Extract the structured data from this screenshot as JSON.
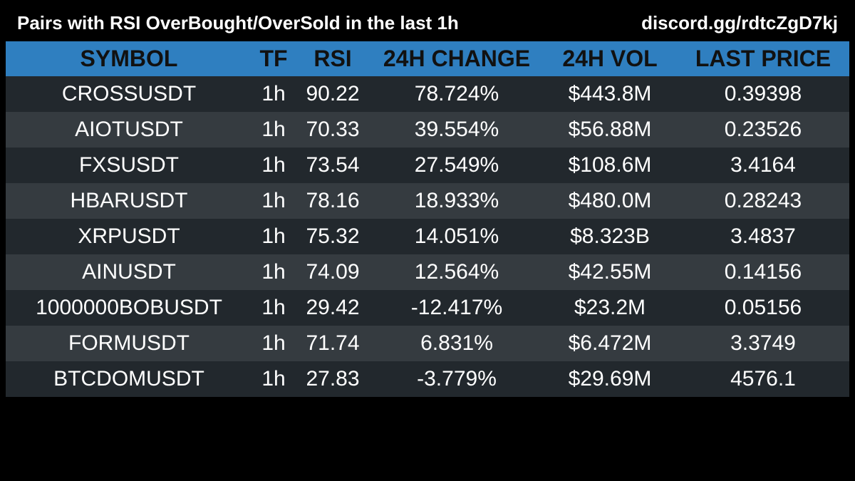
{
  "header": {
    "title": "Pairs with RSI OverBought/OverSold in the last 1h",
    "link": "discord.gg/rdtcZgD7kj"
  },
  "table": {
    "columns": [
      "SYMBOL",
      "TF",
      "RSI",
      "24H CHANGE",
      "24H VOL",
      "LAST PRICE"
    ],
    "rows": [
      {
        "symbol": "CROSSUSDT",
        "tf": "1h",
        "rsi": "90.22",
        "change": "78.724%",
        "vol": "$443.8M",
        "price": "0.39398"
      },
      {
        "symbol": "AIOTUSDT",
        "tf": "1h",
        "rsi": "70.33",
        "change": "39.554%",
        "vol": "$56.88M",
        "price": "0.23526"
      },
      {
        "symbol": "FXSUSDT",
        "tf": "1h",
        "rsi": "73.54",
        "change": "27.549%",
        "vol": "$108.6M",
        "price": "3.4164"
      },
      {
        "symbol": "HBARUSDT",
        "tf": "1h",
        "rsi": "78.16",
        "change": "18.933%",
        "vol": "$480.0M",
        "price": "0.28243"
      },
      {
        "symbol": "XRPUSDT",
        "tf": "1h",
        "rsi": "75.32",
        "change": "14.051%",
        "vol": "$8.323B",
        "price": "3.4837"
      },
      {
        "symbol": "AINUSDT",
        "tf": "1h",
        "rsi": "74.09",
        "change": "12.564%",
        "vol": "$42.55M",
        "price": "0.14156"
      },
      {
        "symbol": "1000000BOBUSDT",
        "tf": "1h",
        "rsi": "29.42",
        "change": "-12.417%",
        "vol": "$23.2M",
        "price": "0.05156"
      },
      {
        "symbol": "FORMUSDT",
        "tf": "1h",
        "rsi": "71.74",
        "change": "6.831%",
        "vol": "$6.472M",
        "price": "3.3749"
      },
      {
        "symbol": "BTCDOMUSDT",
        "tf": "1h",
        "rsi": "27.83",
        "change": "-3.779%",
        "vol": "$29.69M",
        "price": "4576.1"
      }
    ]
  },
  "colors": {
    "background": "#000000",
    "header_row": "#2f7fc0",
    "row_dark": "#22282d",
    "row_light": "#353b40",
    "text": "#ffffff",
    "header_text": "#111111"
  }
}
